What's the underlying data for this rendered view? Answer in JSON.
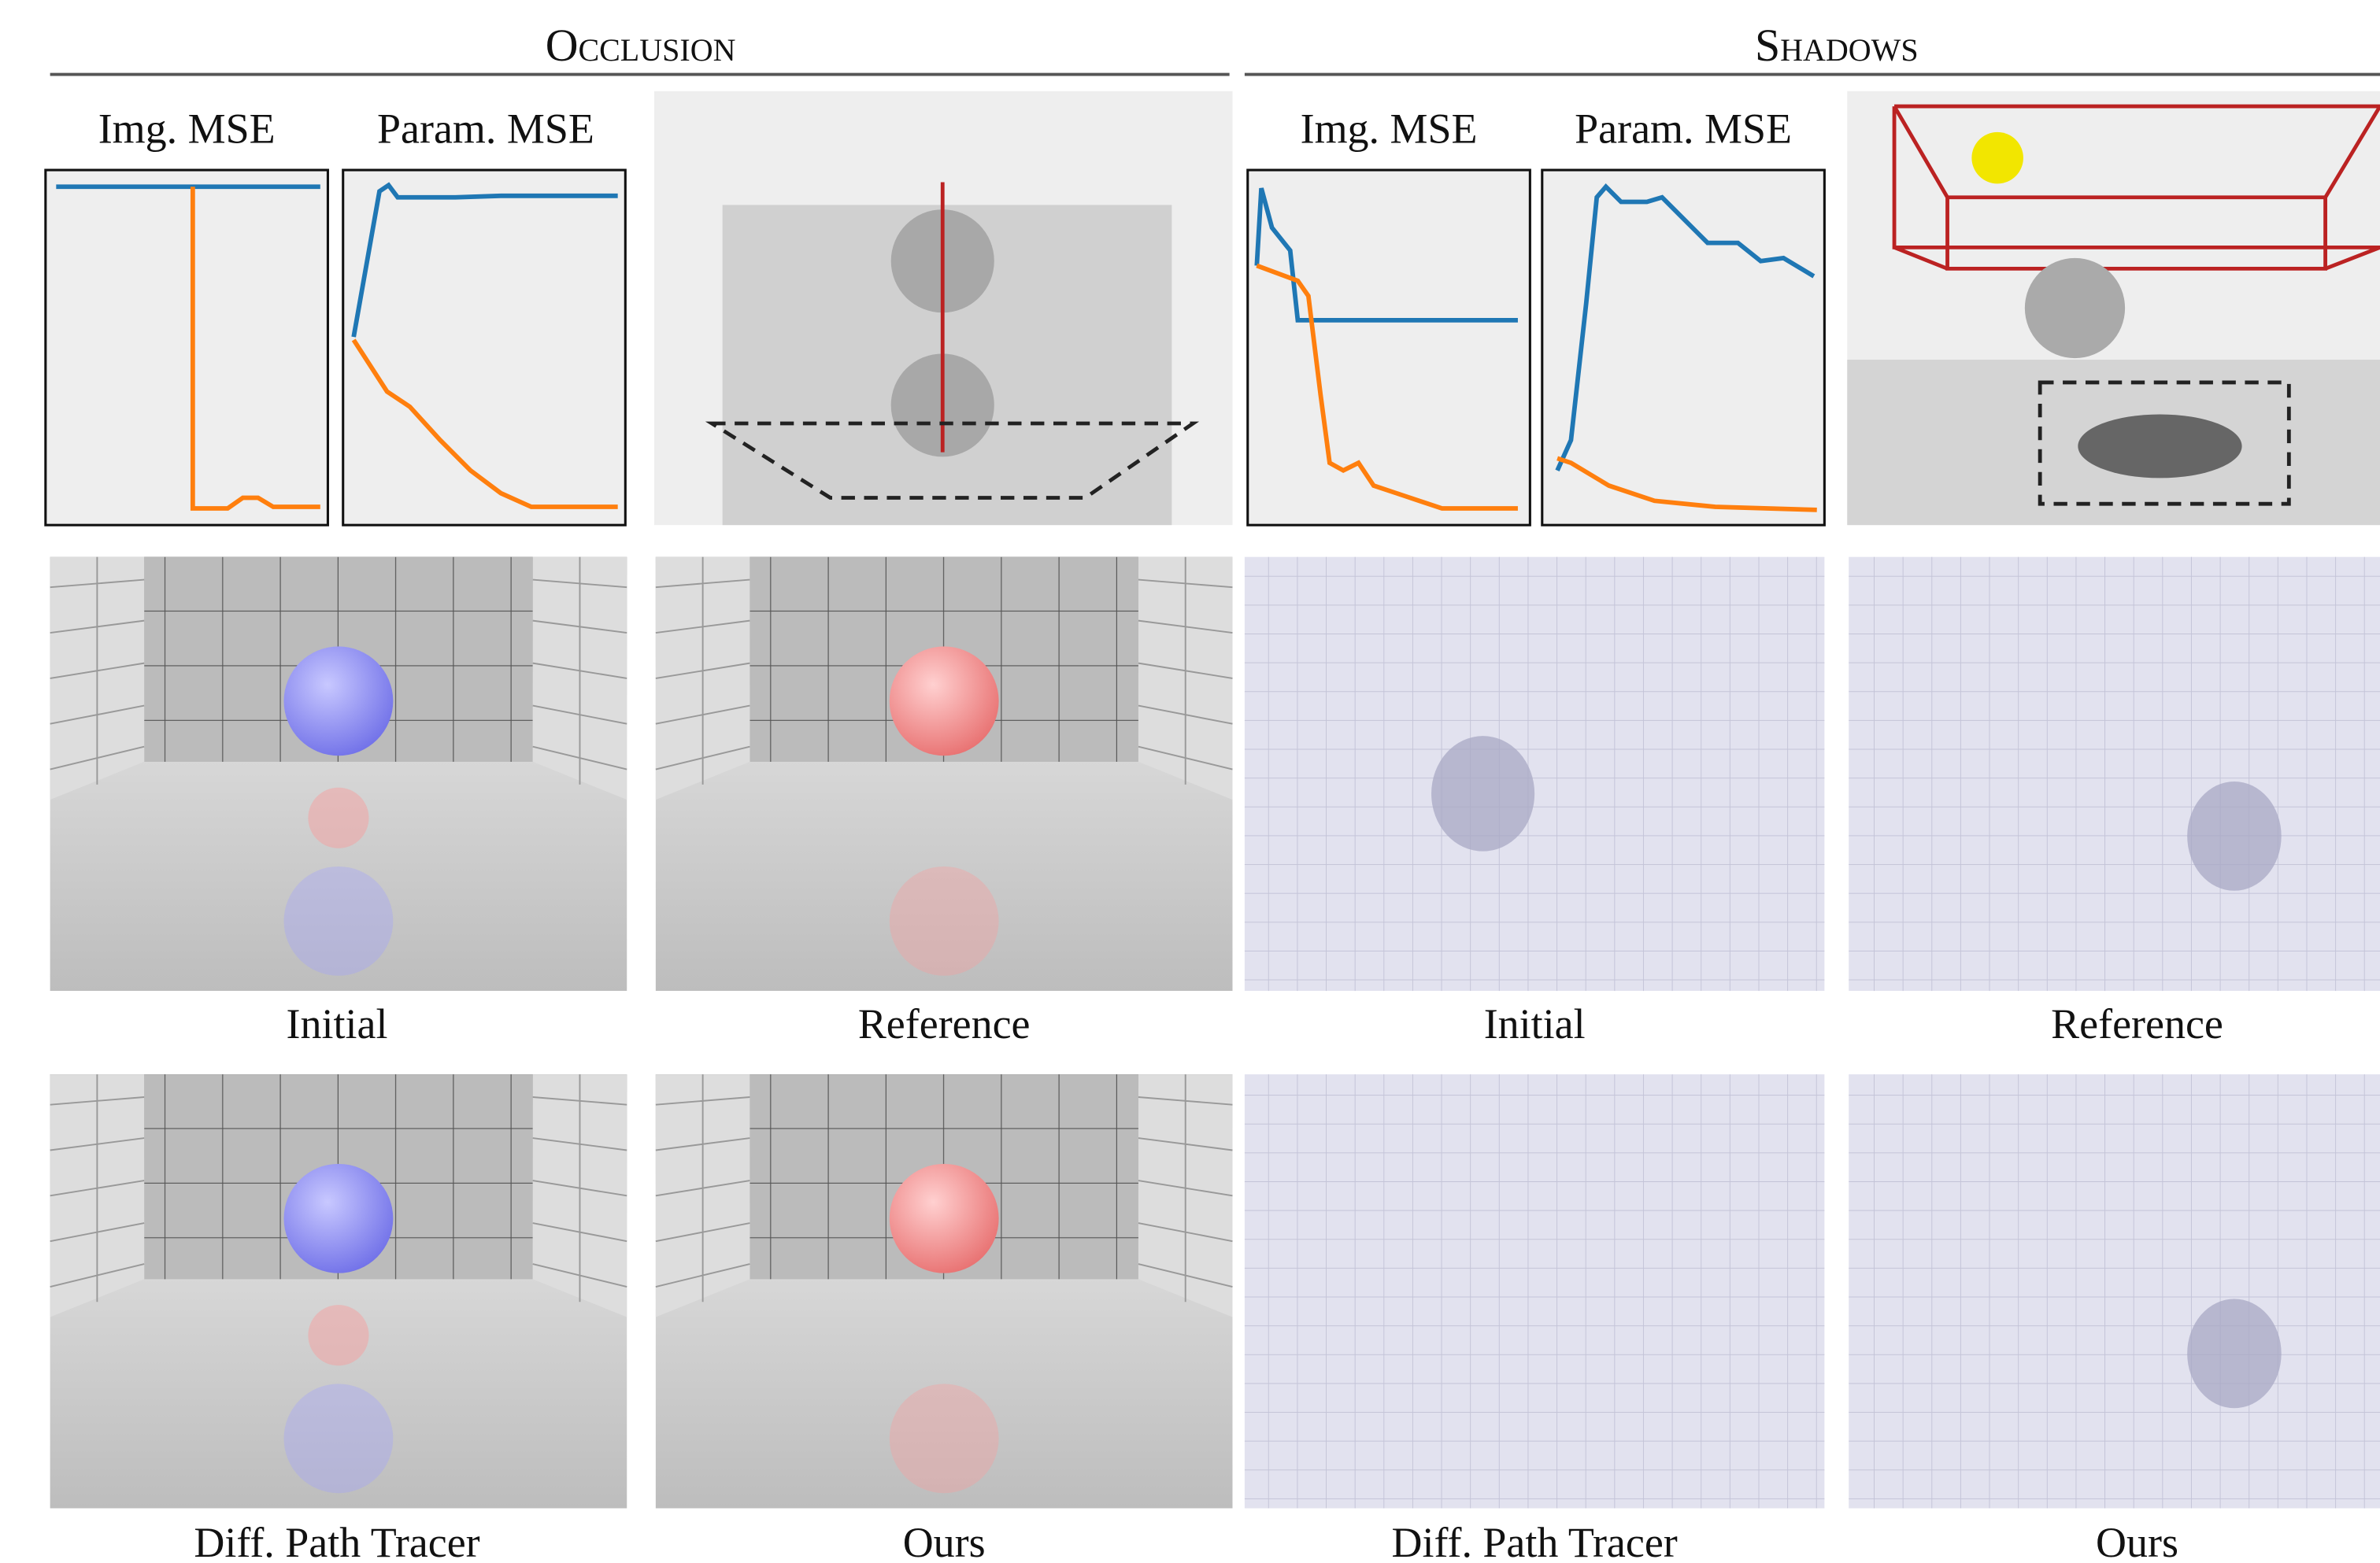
{
  "sections": [
    {
      "title": "Occlusion",
      "plot_titles": [
        "Img. MSE",
        "Param. MSE"
      ],
      "captions": [
        "Initial",
        "Reference",
        "Diff. Path Tracer",
        "Ours"
      ]
    },
    {
      "title": "Shadows",
      "plot_titles": [
        "Img. MSE",
        "Param. MSE"
      ],
      "captions": [
        "Initial",
        "Reference",
        "Diff. Path Tracer",
        "Ours"
      ]
    }
  ]
}
